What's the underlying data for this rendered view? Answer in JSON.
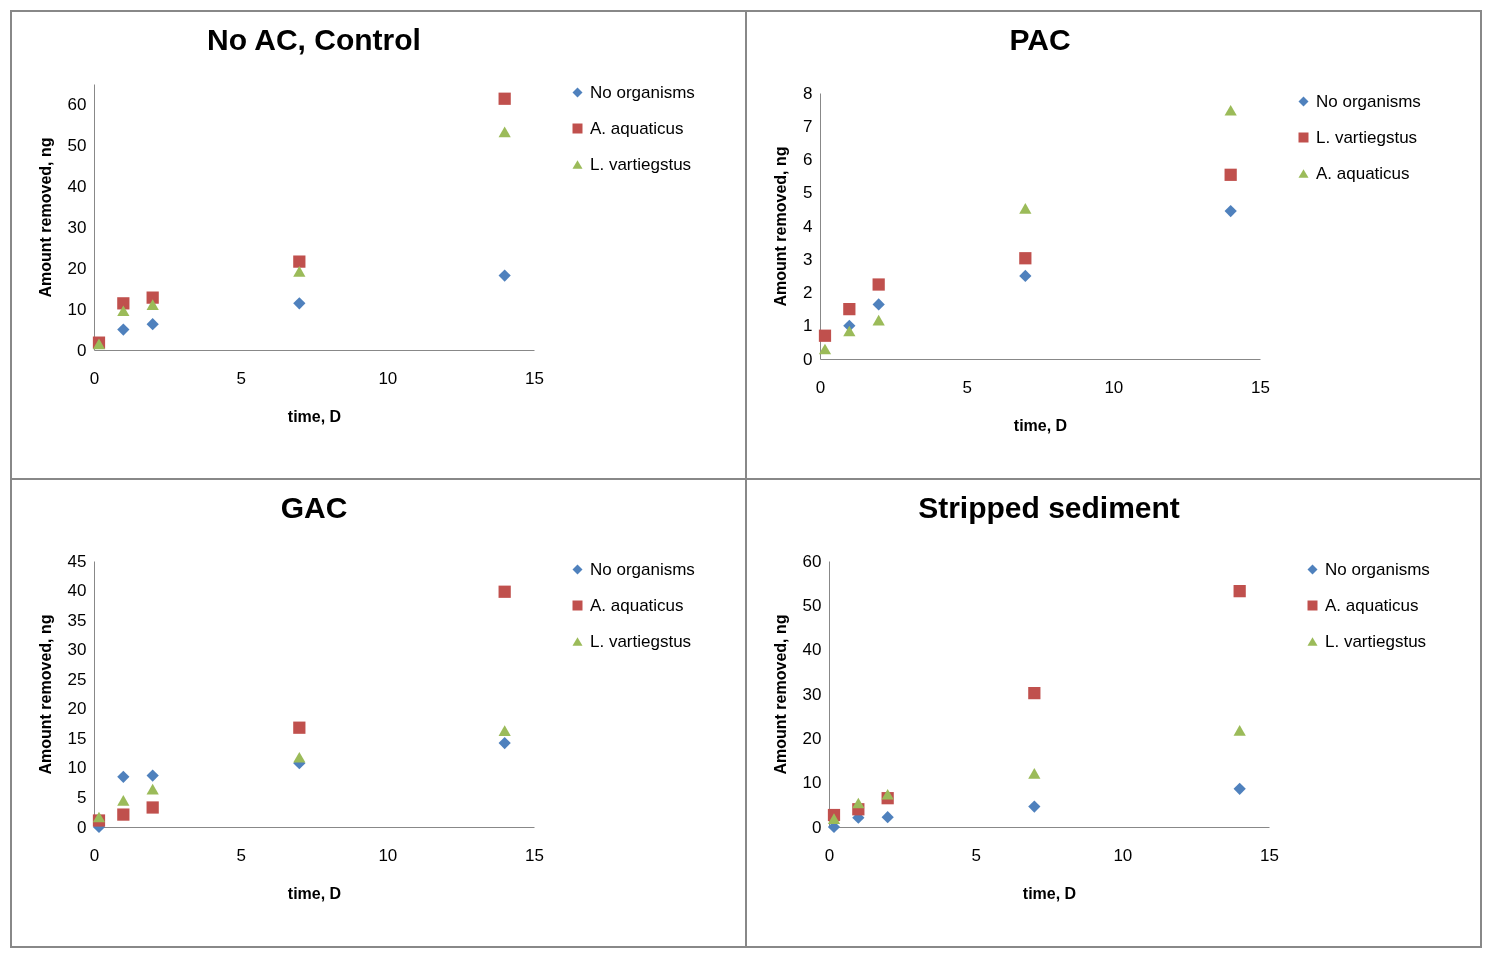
{
  "chart_data": [
    {
      "type": "scatter",
      "title": "No AC, Control",
      "xlabel": "time, D",
      "ylabel": "Amount removed, ng",
      "xlim": [
        0,
        15
      ],
      "xticks": [
        0,
        5,
        10,
        15
      ],
      "ylim": [
        0,
        65
      ],
      "yticks": [
        0,
        10,
        20,
        30,
        40,
        50,
        60
      ],
      "grid": false,
      "legend": "right",
      "series": [
        {
          "name": "No organisms",
          "color": "#4f81bd",
          "marker": "diamond",
          "x": [
            1,
            2,
            7,
            14
          ],
          "values": [
            5.0,
            6.3,
            11.4,
            18.2
          ]
        },
        {
          "name": "A. aquaticus",
          "color": "#c0504d",
          "marker": "square",
          "x": [
            0.17,
            1,
            2,
            7,
            14
          ],
          "values": [
            1.8,
            11.4,
            12.8,
            21.6,
            61.4
          ]
        },
        {
          "name": "L. vartiegstus",
          "color": "#9bbb59",
          "marker": "triangle",
          "x": [
            0.17,
            1,
            2,
            7,
            14
          ],
          "values": [
            1.5,
            9.6,
            11.1,
            19.2,
            53.3
          ]
        }
      ]
    },
    {
      "type": "scatter",
      "title": "PAC",
      "xlabel": "time, D",
      "ylabel": "Amount removed, ng",
      "xlim": [
        0,
        15
      ],
      "xticks": [
        0,
        5,
        10,
        15
      ],
      "ylim": [
        0,
        8
      ],
      "yticks": [
        0,
        1,
        2,
        3,
        4,
        5,
        6,
        7,
        8
      ],
      "grid": false,
      "legend": "right",
      "series": [
        {
          "name": "No organisms",
          "color": "#4f81bd",
          "marker": "diamond",
          "x": [
            1,
            2,
            7,
            14
          ],
          "values": [
            1.0,
            1.64,
            2.5,
            4.45
          ]
        },
        {
          "name": "L. vartiegstus",
          "color": "#c0504d",
          "marker": "square",
          "x": [
            0.17,
            1,
            2,
            7,
            14
          ],
          "values": [
            0.7,
            1.5,
            2.24,
            3.03,
            5.54
          ]
        },
        {
          "name": "A. aquaticus",
          "color": "#9bbb59",
          "marker": "triangle",
          "x": [
            0.17,
            1,
            2,
            7,
            14
          ],
          "values": [
            0.3,
            0.84,
            1.17,
            4.53,
            7.48
          ]
        }
      ]
    },
    {
      "type": "scatter",
      "title": "GAC",
      "xlabel": "time, D",
      "ylabel": "Amount removed, ng",
      "xlim": [
        0,
        15
      ],
      "xticks": [
        0,
        5,
        10,
        15
      ],
      "ylim": [
        0,
        45
      ],
      "yticks": [
        0,
        5,
        10,
        15,
        20,
        25,
        30,
        35,
        40,
        45
      ],
      "grid": false,
      "legend": "right",
      "series": [
        {
          "name": "No organisms",
          "color": "#4f81bd",
          "marker": "diamond",
          "x": [
            0.17,
            1,
            2,
            7,
            14
          ],
          "values": [
            0,
            8.5,
            8.7,
            10.8,
            14.2
          ]
        },
        {
          "name": "A. aquaticus",
          "color": "#c0504d",
          "marker": "square",
          "x": [
            0.17,
            1,
            2,
            7,
            14
          ],
          "values": [
            1.1,
            2.1,
            3.3,
            16.8,
            39.8
          ]
        },
        {
          "name": "L. vartiegstus",
          "color": "#9bbb59",
          "marker": "triangle",
          "x": [
            0.17,
            1,
            2,
            7,
            14
          ],
          "values": [
            1.7,
            4.5,
            6.4,
            11.8,
            16.3
          ]
        }
      ]
    },
    {
      "type": "scatter",
      "title": "Stripped sediment",
      "xlabel": "time, D",
      "ylabel": "Amount removed, ng",
      "xlim": [
        0,
        15
      ],
      "xticks": [
        0,
        5,
        10,
        15
      ],
      "ylim": [
        0,
        60
      ],
      "yticks": [
        0,
        10,
        20,
        30,
        40,
        50,
        60
      ],
      "grid": false,
      "legend": "right",
      "series": [
        {
          "name": "No organisms",
          "color": "#4f81bd",
          "marker": "diamond",
          "x": [
            0.17,
            1,
            2,
            7,
            14
          ],
          "values": [
            0,
            2.1,
            2.2,
            4.6,
            8.6
          ]
        },
        {
          "name": "A. aquaticus",
          "color": "#c0504d",
          "marker": "square",
          "x": [
            0.17,
            1,
            2,
            7,
            14
          ],
          "values": [
            2.7,
            4.0,
            6.5,
            30.2,
            53.2
          ]
        },
        {
          "name": "L. vartiegstus",
          "color": "#9bbb59",
          "marker": "triangle",
          "x": [
            0.17,
            1,
            2,
            7,
            14
          ],
          "values": [
            1.9,
            5.4,
            7.4,
            12.1,
            21.8
          ]
        }
      ]
    }
  ]
}
